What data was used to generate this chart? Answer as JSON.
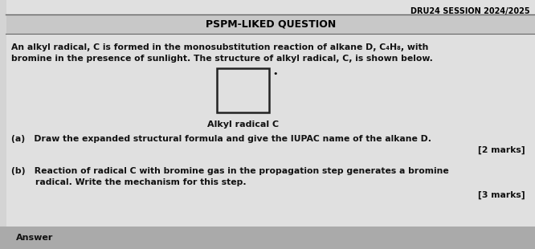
{
  "bg_color": "#d4d4d4",
  "paper_color": "#e8e8e8",
  "header_bg": "#bbbbbb",
  "top_right_text": "DRU24 SESSION 2024/2025",
  "title_text": "PSPM-LIKED QUESTION",
  "body_line1": "An alkyl radical, C is formed in the monosubstitution reaction of alkane D, C₄H₈, with",
  "body_line2": "bromine in the presence of sunlight. The structure of alkyl radical, C, is shown below.",
  "label_alkyl": "Alkyl radical C",
  "qa_text": "(a)   Draw the expanded structural formula and give the IUPAC name of the alkane D.",
  "qa_marks": "[2 marks]",
  "qb_text_line1": "(b)   Reaction of radical C with bromine gas in the propagation step generates a bromine",
  "qb_text_line2": "        radical. Write the mechanism for this step.",
  "qb_marks": "[3 marks]",
  "answer_text": "Answer",
  "text_color": "#111111",
  "title_color": "#000000",
  "answer_bar_color": "#aaaaaa",
  "box_color": "#222222",
  "divider_color": "#666666"
}
